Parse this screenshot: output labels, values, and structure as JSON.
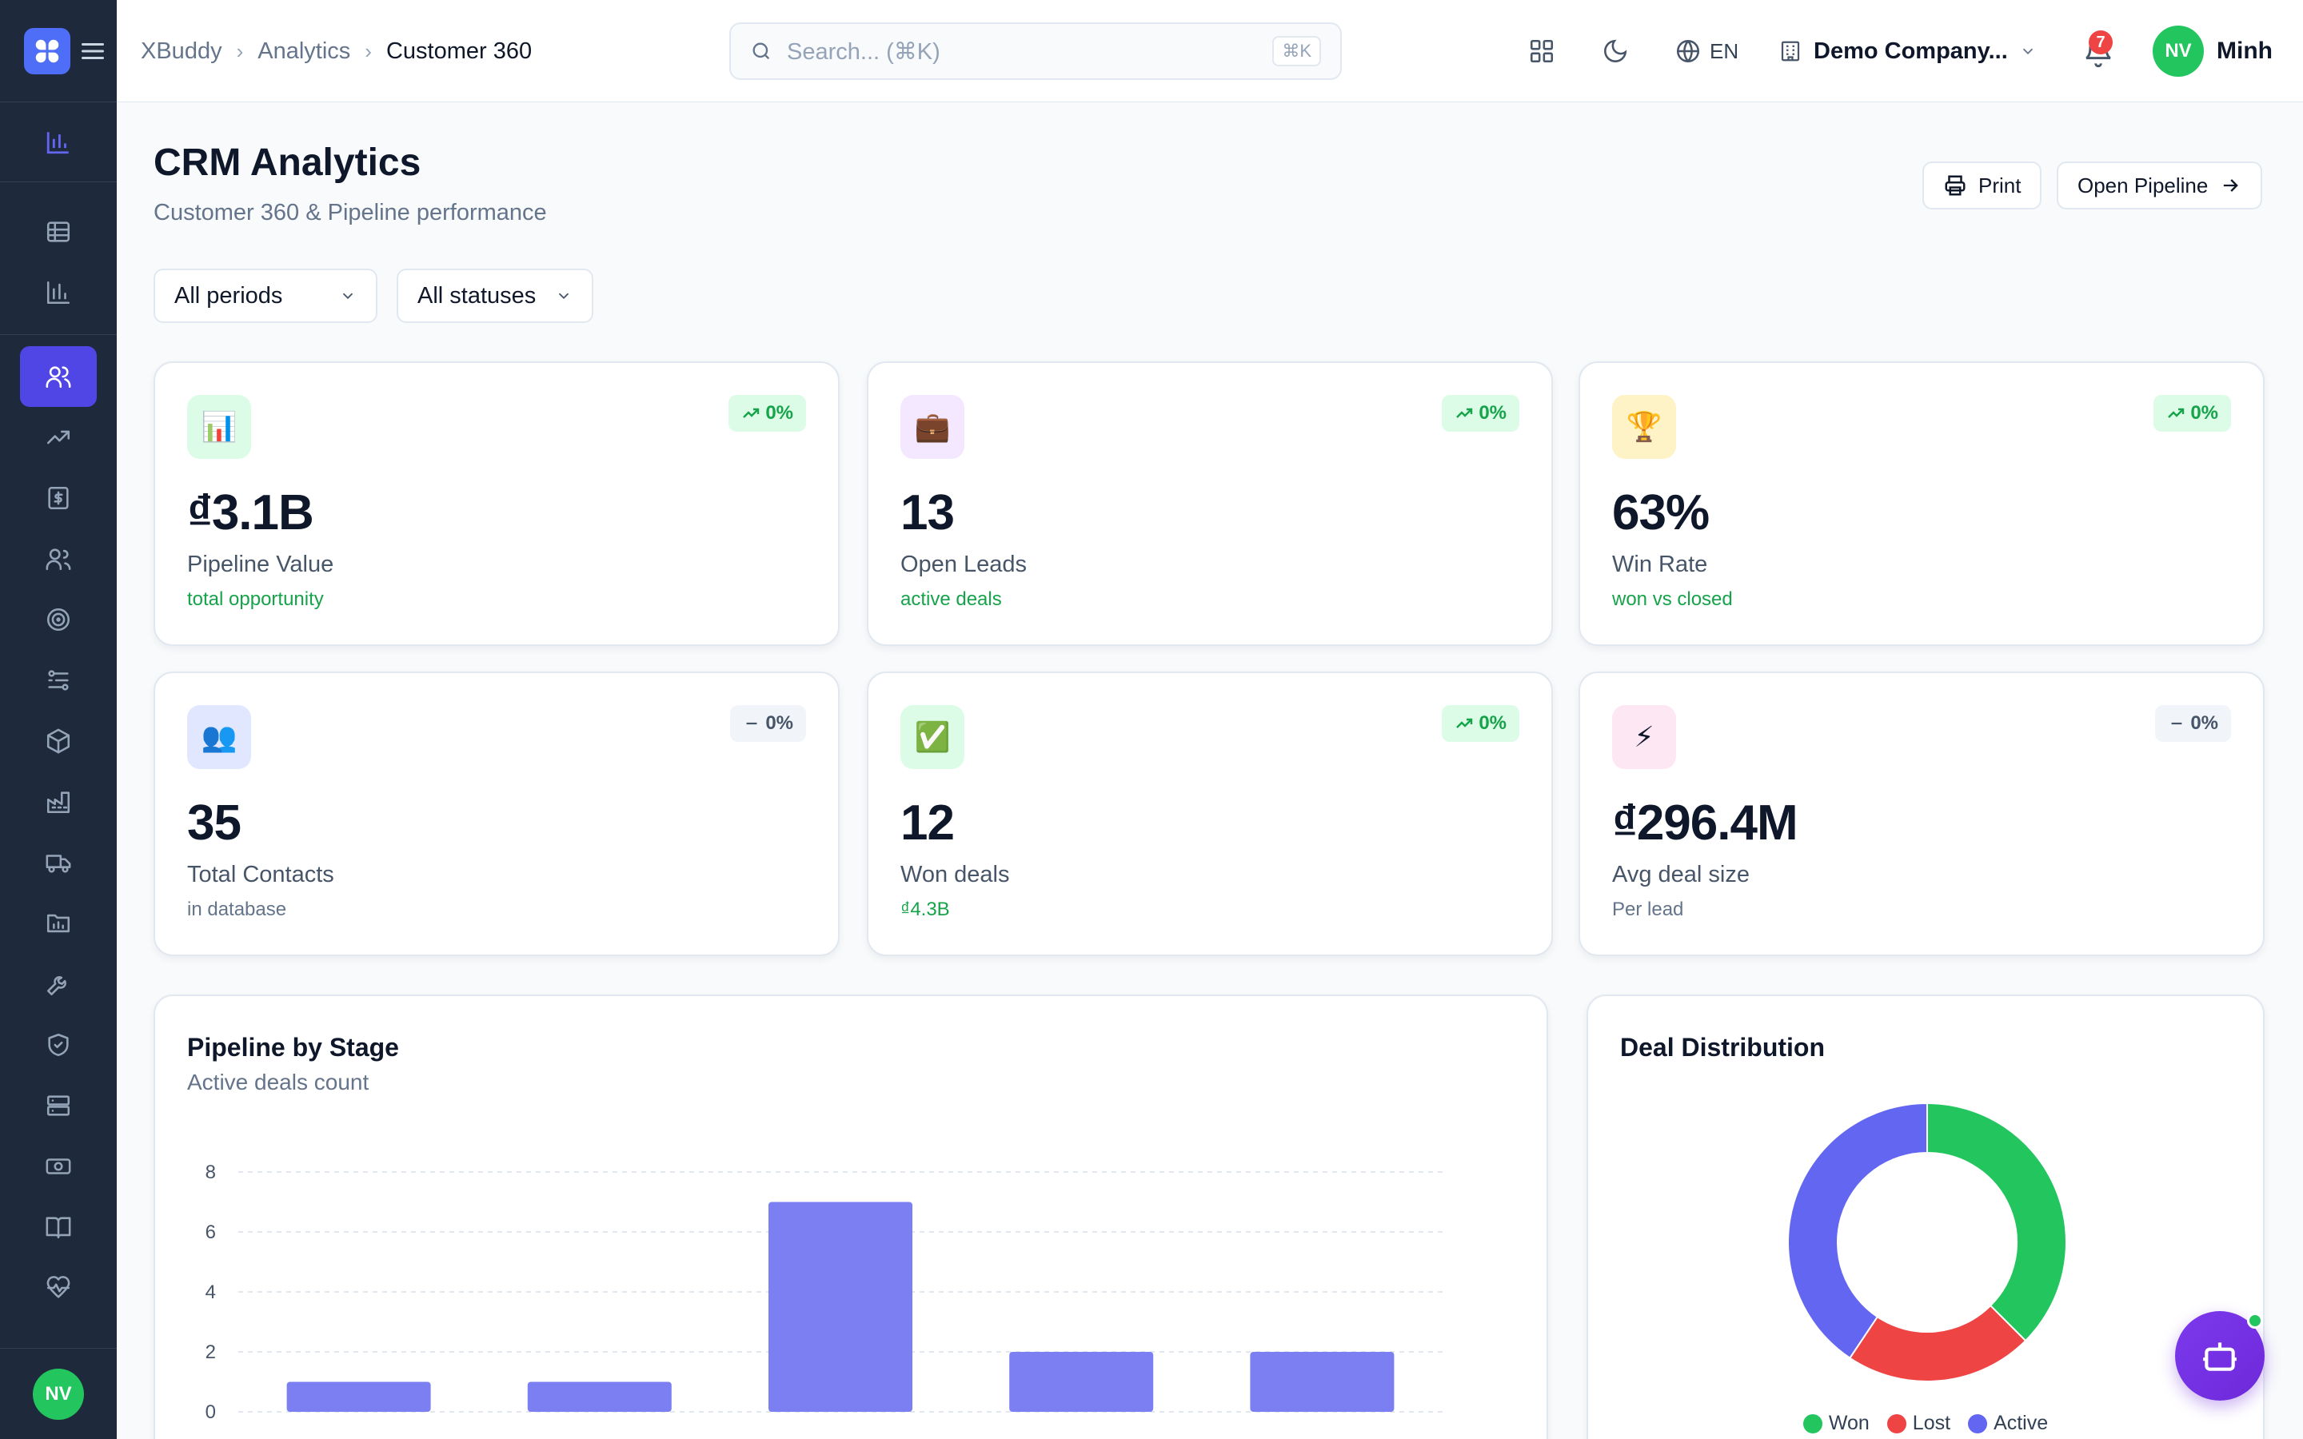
{
  "app": {
    "name": "XBuddy"
  },
  "breadcrumb": {
    "root": "XBuddy",
    "section": "Analytics",
    "current": "Customer 360"
  },
  "search": {
    "placeholder": "Search... (⌘K)",
    "shortcut": "⌘K"
  },
  "topbar": {
    "language": "EN",
    "company": "Demo Company...",
    "notifications": "7",
    "user_initials": "NV",
    "user_name": "Minh"
  },
  "sidebar": {
    "items": [
      {
        "icon": "table-icon"
      },
      {
        "icon": "bar-chart-icon"
      },
      {
        "icon": "users-icon",
        "active": true
      },
      {
        "icon": "trending-up-icon"
      },
      {
        "icon": "invoice-icon"
      },
      {
        "icon": "contacts-icon"
      },
      {
        "icon": "target-icon"
      },
      {
        "icon": "workflow-icon"
      },
      {
        "icon": "package-icon"
      },
      {
        "icon": "factory-icon"
      },
      {
        "icon": "truck-icon"
      },
      {
        "icon": "folder-chart-icon"
      },
      {
        "icon": "wrench-icon"
      },
      {
        "icon": "shield-icon"
      },
      {
        "icon": "server-icon"
      },
      {
        "icon": "money-icon"
      },
      {
        "icon": "book-icon"
      },
      {
        "icon": "heart-pulse-icon"
      }
    ],
    "user_initials": "NV"
  },
  "page": {
    "title": "CRM Analytics",
    "subtitle": "Customer 360 & Pipeline performance"
  },
  "actions": {
    "print": "Print",
    "open_pipeline": "Open Pipeline"
  },
  "filters": {
    "period": "All periods",
    "status": "All statuses"
  },
  "kpis": [
    {
      "icon": "📊",
      "change": "0%",
      "trend": "up",
      "value": "₫3.1B",
      "label": "Pipeline Value",
      "note": "total opportunity",
      "note_color": "green",
      "bg": "#dcfce7"
    },
    {
      "icon": "💼",
      "change": "0%",
      "trend": "up",
      "value": "13",
      "label": "Open Leads",
      "note": "active deals",
      "note_color": "green",
      "bg": "#f3e8ff"
    },
    {
      "icon": "🏆",
      "change": "0%",
      "trend": "up",
      "value": "63%",
      "label": "Win Rate",
      "note": "won vs closed",
      "note_color": "green",
      "bg": "#fef3c7"
    },
    {
      "icon": "👥",
      "change": "0%",
      "trend": "flat",
      "value": "35",
      "label": "Total Contacts",
      "note": "in database",
      "note_color": "gray",
      "bg": "#e0e7ff"
    },
    {
      "icon": "✅",
      "change": "0%",
      "trend": "up",
      "value": "12",
      "label": "Won deals",
      "note": "₫4.3B",
      "note_color": "green",
      "bg": "#dcfce7"
    },
    {
      "icon": "⚡",
      "change": "0%",
      "trend": "flat",
      "value": "₫296.4M",
      "label": "Avg deal size",
      "note": "Per lead",
      "note_color": "gray",
      "bg": "#fce7f3"
    }
  ],
  "pipeline_card": {
    "title": "Pipeline by Stage",
    "subtitle": "Active deals count"
  },
  "distribution_card": {
    "title": "Deal Distribution"
  },
  "chart_data": [
    {
      "type": "bar",
      "title": "Pipeline by Stage",
      "subtitle": "Active deals count",
      "categories": [
        "",
        "",
        "",
        "",
        ""
      ],
      "values": [
        1,
        1,
        7,
        2,
        2
      ],
      "ylim": [
        0,
        8
      ],
      "yticks": [
        0,
        2,
        4,
        6,
        8
      ],
      "grid": true,
      "color": "#7b7ff2"
    },
    {
      "type": "pie",
      "title": "Deal Distribution",
      "labels": [
        "Won",
        "Lost",
        "Active"
      ],
      "values": [
        12,
        7,
        13
      ],
      "colors": [
        "#22c55e",
        "#ef4444",
        "#6366f1"
      ],
      "legend": "bottom"
    }
  ]
}
